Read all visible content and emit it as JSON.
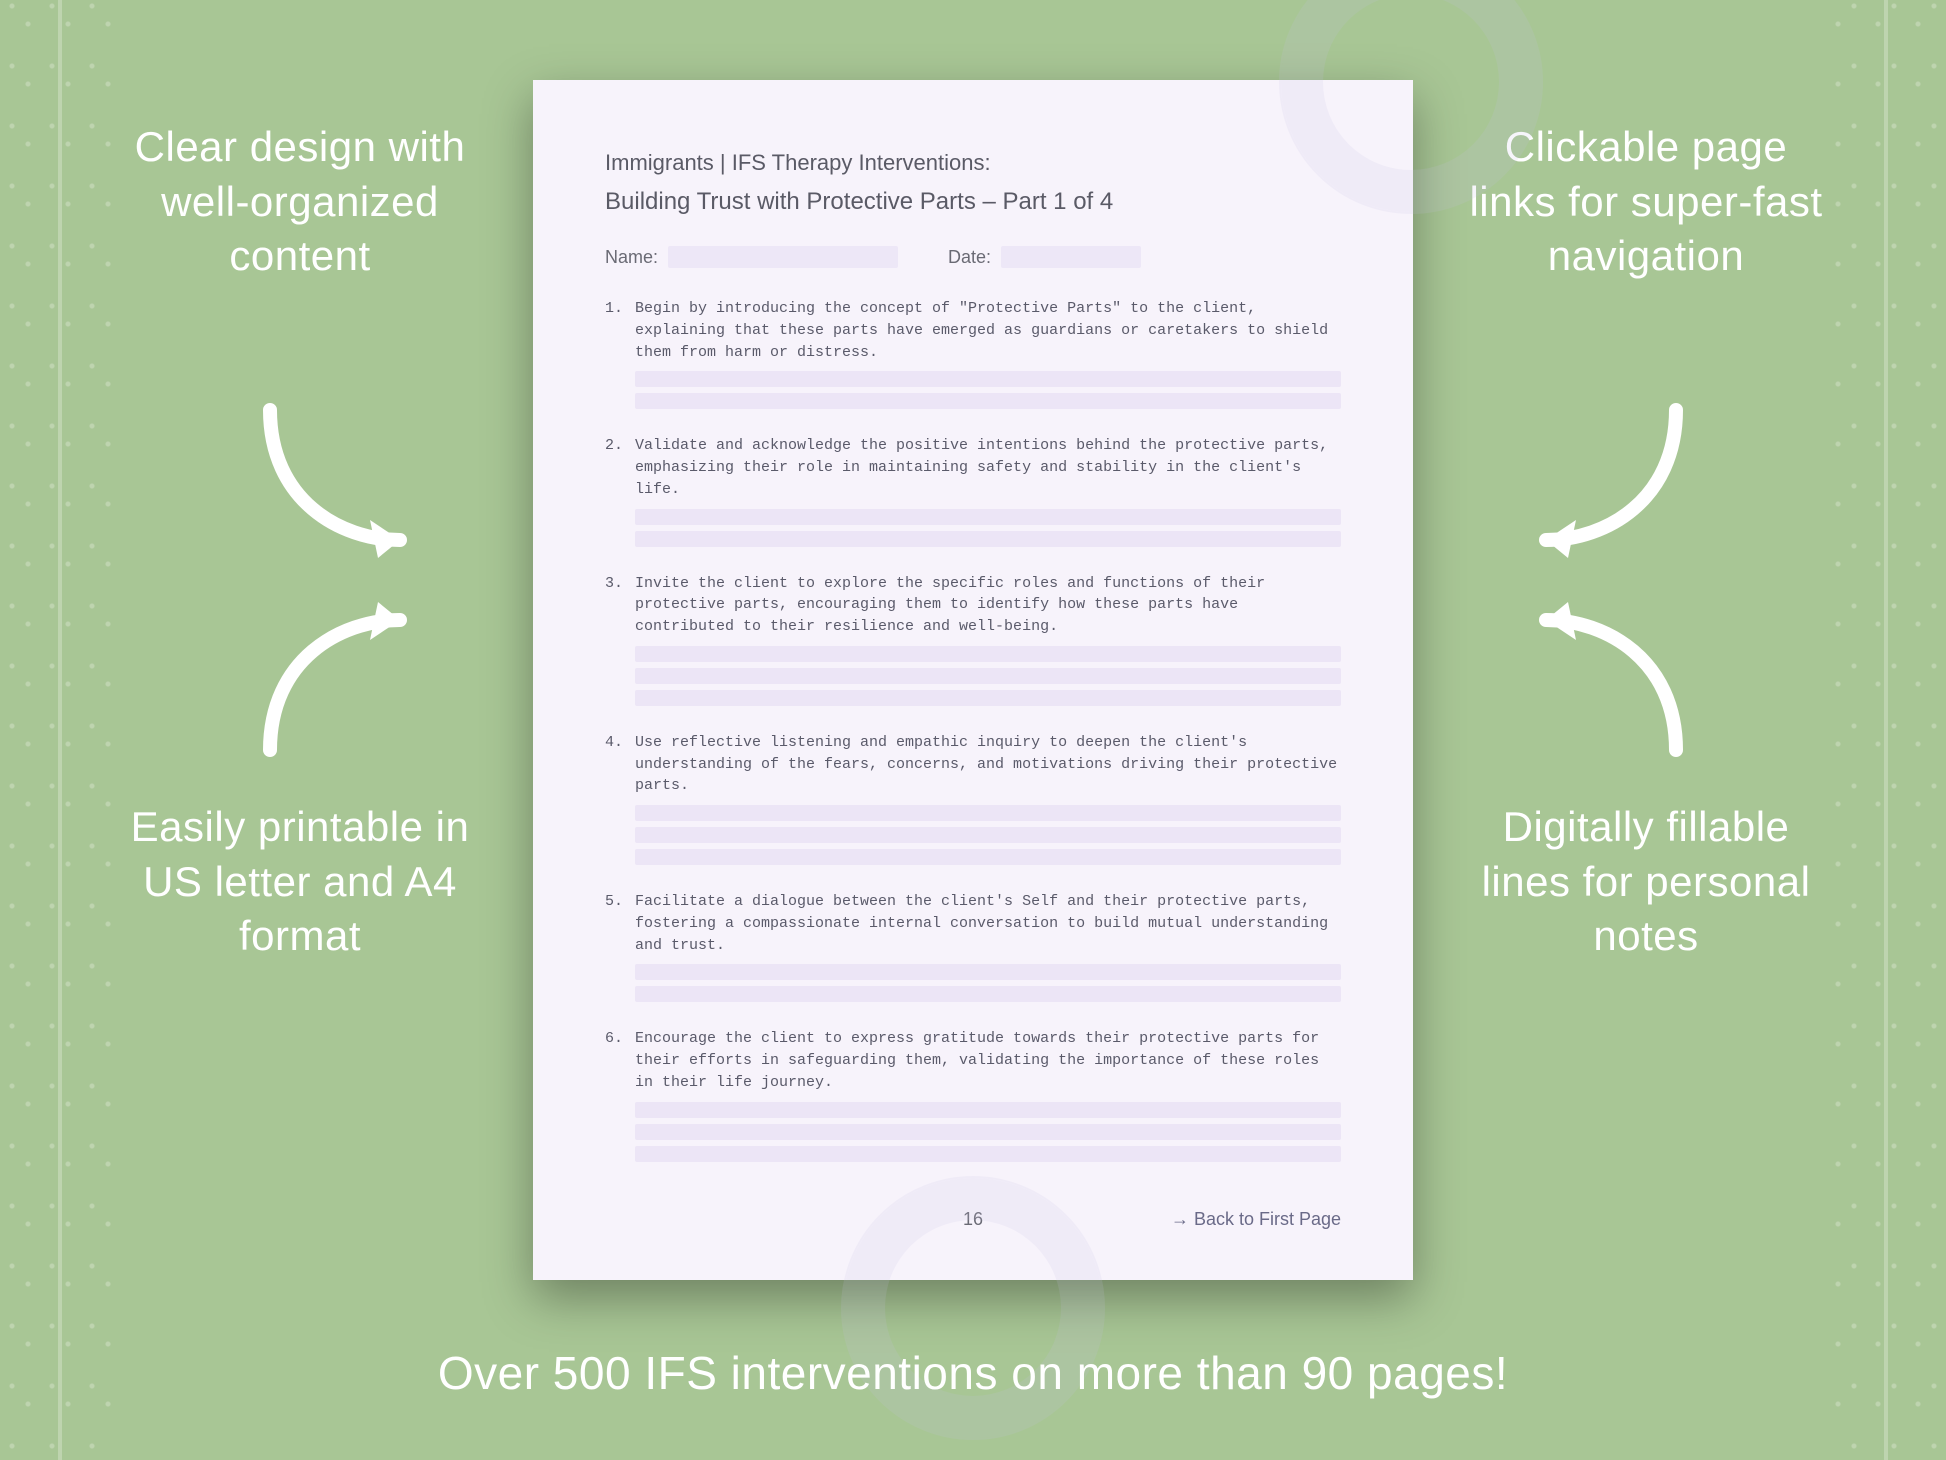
{
  "background_color": "#a8c695",
  "page_background": "#f7f3fb",
  "fill_line_color": "#ece5f6",
  "text_color_page": "#5a5a66",
  "callout_color": "#ffffff",
  "callout_fontsize_pt": 32,
  "tagline_fontsize_pt": 35,
  "callouts": {
    "tl": "Clear design with well-organized content",
    "tr": "Clickable page links for super-fast navigation",
    "bl": "Easily printable in US letter and A4 format",
    "br": "Digitally fillable lines for personal notes"
  },
  "tagline": "Over 500 IFS interventions on more than 90 pages!",
  "page": {
    "category": "Immigrants | IFS Therapy Interventions:",
    "title": "Building Trust with Protective Parts  – Part 1 of 4",
    "name_label": "Name:",
    "date_label": "Date:",
    "page_number": "16",
    "back_link": "→ Back to First Page",
    "items": [
      {
        "n": "1.",
        "text": "Begin by introducing the concept of \"Protective Parts\" to the client, explaining that these parts have emerged as guardians or caretakers to shield them from harm or distress.",
        "lines": 2
      },
      {
        "n": "2.",
        "text": "Validate and acknowledge the positive intentions behind the protective parts, emphasizing their role in maintaining safety and stability in the client's life.",
        "lines": 2
      },
      {
        "n": "3.",
        "text": "Invite the client to explore the specific roles and functions of their protective parts, encouraging them to identify how these parts have contributed to their resilience and well-being.",
        "lines": 3
      },
      {
        "n": "4.",
        "text": "Use reflective listening and empathic inquiry to deepen the client's understanding of the fears, concerns, and motivations driving their protective parts.",
        "lines": 3
      },
      {
        "n": "5.",
        "text": "Facilitate a dialogue between the client's Self and their protective parts, fostering a compassionate internal conversation to build mutual understanding and trust.",
        "lines": 2
      },
      {
        "n": "6.",
        "text": "Encourage the client to express gratitude towards their protective parts for their efforts in safeguarding them, validating the importance of these roles in their life journey.",
        "lines": 3
      }
    ]
  }
}
